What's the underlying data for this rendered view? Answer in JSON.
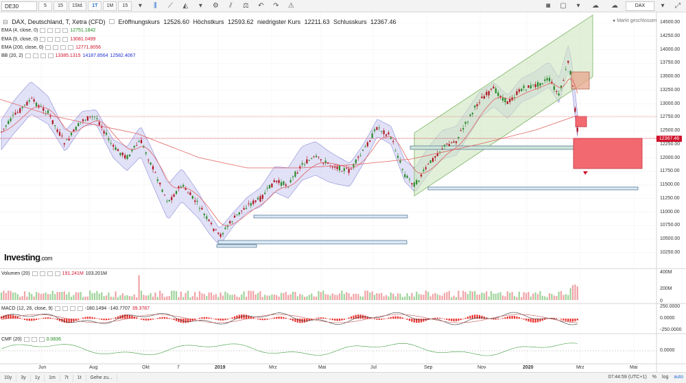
{
  "toolbar": {
    "symbol": "DE30",
    "intervals": [
      "5",
      "15",
      "1Std.",
      "1T",
      "1M",
      "15"
    ],
    "active_interval": "1T",
    "dax_label": "DAX"
  },
  "main": {
    "title_parts": [
      "DAX, Deutschland, T, Xetra (CFD)",
      "Eröffnungskurs",
      "12526.60",
      "Höchstkurs",
      "12593.62",
      "niedrigster Kurs",
      "12211.63",
      "Schlusskurs",
      "12367.46"
    ],
    "market_status": "Markt geschlossen",
    "current_price": "12367.46",
    "indicators": [
      {
        "name": "EMA (4, close, 0)",
        "value": "12751.1842",
        "color": "#1a8a1a"
      },
      {
        "name": "EMA (9, close, 0)",
        "value": "13081.0499",
        "color": "#d0112b"
      },
      {
        "name": "EMA (200, close, 0)",
        "value": "12771.8056",
        "color": "#d0112b"
      },
      {
        "name": "BB (20, 2)",
        "values": [
          "13385.1315",
          "14187.8564",
          "12582.4067"
        ],
        "colors": [
          "#d0112b",
          "#1f2fd0",
          "#1f2fd0"
        ]
      }
    ]
  },
  "price_axis": [
    "14500.00",
    "14250.00",
    "14000.00",
    "13750.00",
    "13500.00",
    "13250.00",
    "13000.00",
    "12750.00",
    "12500.00",
    "12250.00",
    "12000.00",
    "11750.00",
    "11500.00",
    "11250.00",
    "11000.00",
    "10750.00",
    "10500.00",
    "10250.00"
  ],
  "volume": {
    "label": "Volumen (20)",
    "v1": "191.241M",
    "v2": "103.201M",
    "axis": [
      "400M",
      "200M",
      "0"
    ]
  },
  "macd": {
    "label": "MACD (12, 26, close, 9)",
    "v1": "-180.1494",
    "v2": "-140.7707",
    "v3": "39.3787",
    "axis": [
      "250.0000",
      "0.0000",
      "-250.0000"
    ]
  },
  "cmf": {
    "label": "CMF (20)",
    "value": "0.0836",
    "axis": [
      "0.0000"
    ]
  },
  "dates": [
    "Jun",
    "Aug",
    "Okt",
    "7",
    "2019",
    "Mrz",
    "Mai",
    "Jul",
    "Sep",
    "Nov",
    "2020",
    "Mrz",
    "Mai"
  ],
  "bottom": {
    "ranges": [
      "10y",
      "3y",
      "1y",
      "1m",
      "7t",
      "1t",
      "Gehe zu..."
    ],
    "time": "07:44:59 (UTC+1)",
    "opts": [
      "%",
      "log",
      "auto"
    ]
  },
  "logo": {
    "main": "Investing",
    "suffix": ".com"
  },
  "colors": {
    "up": "#2a8a2a",
    "down": "#b0141e",
    "band": "#c8c8f0",
    "channel": "#cfe6c0"
  }
}
